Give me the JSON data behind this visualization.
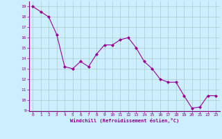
{
  "x": [
    0,
    1,
    2,
    3,
    4,
    5,
    6,
    7,
    8,
    9,
    10,
    11,
    12,
    13,
    14,
    15,
    16,
    17,
    18,
    19,
    20,
    21,
    22,
    23
  ],
  "y": [
    19.0,
    18.5,
    18.0,
    16.3,
    13.2,
    13.0,
    13.7,
    13.2,
    14.4,
    15.3,
    15.3,
    15.8,
    16.0,
    15.0,
    13.7,
    13.0,
    12.0,
    11.7,
    11.7,
    10.4,
    9.2,
    9.3,
    10.4,
    10.4
  ],
  "line_color": "#990099",
  "marker": "D",
  "marker_size": 2.0,
  "bg_color": "#cceeff",
  "grid_color": "#aacccc",
  "xlabel": "Windchill (Refroidissement éolien,°C)",
  "xlabel_color": "#880088",
  "tick_color": "#880088",
  "ylim": [
    8.9,
    19.5
  ],
  "xlim": [
    -0.5,
    23.5
  ],
  "yticks": [
    9,
    10,
    11,
    12,
    13,
    14,
    15,
    16,
    17,
    18,
    19
  ],
  "xticks": [
    0,
    1,
    2,
    3,
    4,
    5,
    6,
    7,
    8,
    9,
    10,
    11,
    12,
    13,
    14,
    15,
    16,
    17,
    18,
    19,
    20,
    21,
    22,
    23
  ]
}
